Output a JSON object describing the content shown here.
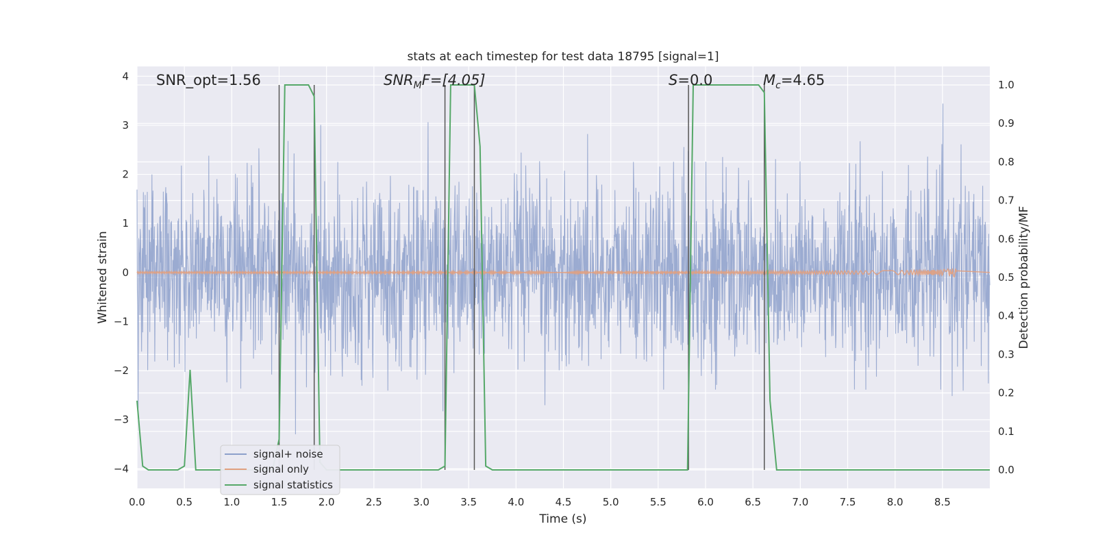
{
  "chart_data": {
    "type": "line",
    "title": "stats at each timestep for test data 18795 [signal=1]",
    "xlabel": "Time (s)",
    "ylabel_left": "Whitened strain",
    "ylabel_right": "Detection probability/MF",
    "xlim": [
      0.0,
      9.0
    ],
    "ylim_left": [
      -4.4,
      4.2
    ],
    "ylim_right": [
      -0.048,
      1.048
    ],
    "x_ticks": [
      "0.0",
      "0.5",
      "1.0",
      "1.5",
      "2.0",
      "2.5",
      "3.0",
      "3.5",
      "4.0",
      "4.5",
      "5.0",
      "5.5",
      "6.0",
      "6.5",
      "7.0",
      "7.5",
      "8.0",
      "8.5"
    ],
    "y_ticks_left": [
      "−4",
      "−3",
      "−2",
      "−1",
      "0",
      "1",
      "2",
      "3",
      "4"
    ],
    "y_ticks_right": [
      "0.0",
      "0.1",
      "0.2",
      "0.3",
      "0.4",
      "0.5",
      "0.6",
      "0.7",
      "0.8",
      "0.9",
      "1.0"
    ],
    "grid": true,
    "legend_position": "lower-left",
    "annotations": {
      "snr_opt": "SNR_opt=1.56",
      "snr_mf_main": "SNR",
      "snr_mf_sub": "M",
      "snr_mf_rest": "F=[4.05]",
      "s_main": "S",
      "s_rest": "=0.0",
      "mc_main": "M",
      "mc_sub": "c",
      "mc_rest": "=4.65"
    },
    "vertical_lines_x": [
      1.5,
      1.87,
      3.25,
      3.56,
      5.82,
      6.62
    ],
    "series": [
      {
        "name": "signal+ noise",
        "color": "#8da0cb",
        "description_stats": {
          "x_start": 0.0,
          "x_end": 9.0,
          "std": 0.9,
          "min": -3.9,
          "max": 3.8
        }
      },
      {
        "name": "signal only",
        "color": "#e1a07f",
        "chirp": {
          "x_start": 0.0,
          "x_end": 8.65,
          "peak_amplitude": 0.12
        }
      },
      {
        "name": "signal statistics",
        "color": "#55a868",
        "x": [
          0.0,
          0.06,
          0.12,
          0.18,
          0.25,
          0.31,
          0.37,
          0.43,
          0.5,
          0.56,
          0.62,
          0.68,
          0.75,
          0.81,
          0.87,
          0.93,
          1.0,
          1.06,
          1.12,
          1.18,
          1.25,
          1.31,
          1.37,
          1.43,
          1.5,
          1.56,
          1.62,
          1.68,
          1.75,
          1.81,
          1.87,
          1.93,
          2.0,
          2.06,
          2.12,
          2.18,
          2.25,
          2.31,
          2.37,
          2.43,
          2.5,
          2.56,
          2.62,
          2.68,
          2.75,
          2.81,
          2.87,
          2.93,
          3.0,
          3.06,
          3.12,
          3.18,
          3.25,
          3.31,
          3.37,
          3.43,
          3.5,
          3.56,
          3.62,
          3.68,
          3.75,
          3.81,
          3.87,
          3.93,
          4.0,
          4.5,
          5.0,
          5.5,
          5.75,
          5.81,
          5.87,
          5.93,
          6.0,
          6.5,
          6.56,
          6.62,
          6.68,
          6.75,
          6.81,
          6.87,
          7.0,
          7.5,
          8.0,
          8.5,
          9.0
        ],
        "y": [
          0.18,
          0.01,
          0.0,
          0.0,
          0.0,
          0.0,
          0.0,
          0.0,
          0.01,
          0.26,
          0.0,
          0.0,
          0.0,
          0.0,
          0.0,
          0.0,
          0.0,
          0.0,
          0.0,
          0.0,
          0.0,
          0.0,
          0.0,
          0.0,
          0.08,
          1.0,
          1.0,
          1.0,
          1.0,
          1.0,
          0.97,
          0.02,
          0.0,
          0.0,
          0.0,
          0.0,
          0.0,
          0.0,
          0.0,
          0.0,
          0.0,
          0.0,
          0.0,
          0.0,
          0.0,
          0.0,
          0.0,
          0.0,
          0.0,
          0.0,
          0.0,
          0.0,
          0.01,
          1.0,
          1.0,
          1.0,
          1.0,
          1.0,
          0.84,
          0.01,
          0.0,
          0.0,
          0.0,
          0.0,
          0.0,
          0.0,
          0.0,
          0.0,
          0.0,
          0.0,
          1.0,
          1.0,
          1.0,
          1.0,
          1.0,
          0.98,
          0.18,
          0.0,
          0.0,
          0.0,
          0.0,
          0.0,
          0.0,
          0.0,
          0.0
        ]
      }
    ]
  }
}
